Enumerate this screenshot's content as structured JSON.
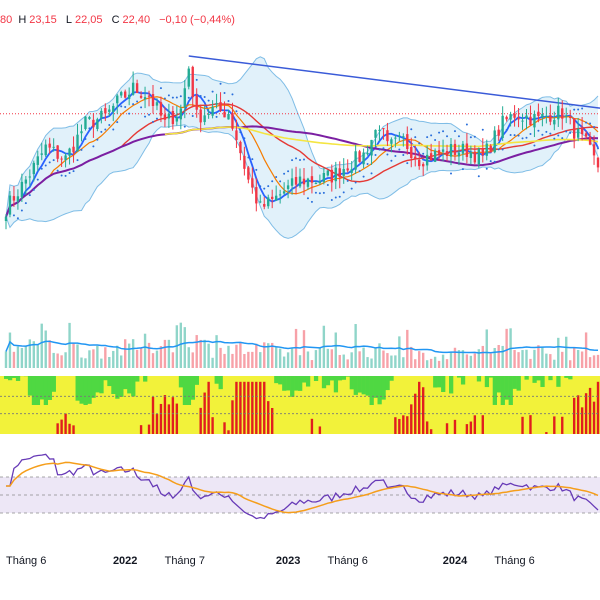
{
  "ohlc": {
    "open_fragment": "80",
    "high_key": "H",
    "high": "23,15",
    "low_key": "L",
    "low": "22,05",
    "close_key": "C",
    "close": "22,40",
    "change": "−0,10 (−0,44%)"
  },
  "colors": {
    "up": "#22ab94",
    "down": "#f23645",
    "bb_fill": "#d9edf9",
    "bb_line": "#7fbde6",
    "ma_short": "#2962ff",
    "ma_orange": "#f57c00",
    "ma_red": "#e53935",
    "ma_purple": "#7b1fa2",
    "ma_yellow": "#f4e542",
    "trendline": "#3a5bd8",
    "rsi_line": "#673ab7",
    "rsi_ma": "#f59e1b",
    "rsi_band": "#ede7f6",
    "vol_ma": "#2196f3",
    "heat_yellow": "#f2f23a",
    "heat_green": "#4fd842",
    "heat_red": "#e01e1e",
    "psar": "#2a6fdb",
    "hline_red": "#f23645"
  },
  "chart_data": {
    "type": "candlestick",
    "x_axis_labels": [
      "Tháng 6",
      "2022",
      "Tháng 7",
      "2023",
      "Tháng 6",
      "2024",
      "Tháng 6"
    ],
    "x_axis_label_is_year": [
      false,
      true,
      false,
      true,
      false,
      true,
      false
    ],
    "x_axis_label_index": [
      0,
      30,
      45,
      71,
      86,
      113,
      128
    ],
    "num_bars": 150,
    "price_range": [
      13,
      32
    ],
    "last": {
      "high": 23.15,
      "low": 22.05,
      "close": 22.4,
      "change": -0.1,
      "change_pct": -0.44
    },
    "anchors": [
      [
        0,
        19.5
      ],
      [
        5,
        21.5
      ],
      [
        10,
        23.8
      ],
      [
        15,
        23.0
      ],
      [
        20,
        25.5
      ],
      [
        25,
        26.0
      ],
      [
        28,
        27.0
      ],
      [
        32,
        28.0
      ],
      [
        36,
        27.5
      ],
      [
        40,
        25.5
      ],
      [
        44,
        26.5
      ],
      [
        46,
        29.5
      ],
      [
        48,
        26.0
      ],
      [
        52,
        26.5
      ],
      [
        56,
        26.3
      ],
      [
        58,
        24.5
      ],
      [
        61,
        21.5
      ],
      [
        64,
        19.5
      ],
      [
        67,
        20.0
      ],
      [
        70,
        20.7
      ],
      [
        74,
        21.5
      ],
      [
        78,
        21.5
      ],
      [
        82,
        21.8
      ],
      [
        86,
        22.6
      ],
      [
        90,
        23.3
      ],
      [
        94,
        25.5
      ],
      [
        96,
        23.8
      ],
      [
        100,
        24.3
      ],
      [
        104,
        23.0
      ],
      [
        108,
        23.3
      ],
      [
        112,
        23.6
      ],
      [
        116,
        23.6
      ],
      [
        120,
        23.1
      ],
      [
        125,
        25.5
      ],
      [
        128,
        26.2
      ],
      [
        131,
        26.0
      ],
      [
        134,
        25.8
      ],
      [
        137,
        26.2
      ],
      [
        140,
        26.3
      ],
      [
        143,
        25.0
      ],
      [
        146,
        24.0
      ],
      [
        149,
        22.4
      ]
    ],
    "volume_anchors": [
      [
        0,
        0.3
      ],
      [
        10,
        0.35
      ],
      [
        20,
        0.3
      ],
      [
        30,
        0.32
      ],
      [
        40,
        0.45
      ],
      [
        45,
        0.6
      ],
      [
        50,
        0.35
      ],
      [
        60,
        0.3
      ],
      [
        70,
        0.28
      ],
      [
        80,
        0.25
      ],
      [
        90,
        0.3
      ],
      [
        100,
        0.25
      ],
      [
        110,
        0.22
      ],
      [
        120,
        0.28
      ],
      [
        130,
        0.3
      ],
      [
        140,
        0.25
      ],
      [
        149,
        0.2
      ]
    ],
    "rsi_range": [
      0,
      100
    ],
    "rsi_levels": [
      70,
      50,
      30
    ]
  }
}
